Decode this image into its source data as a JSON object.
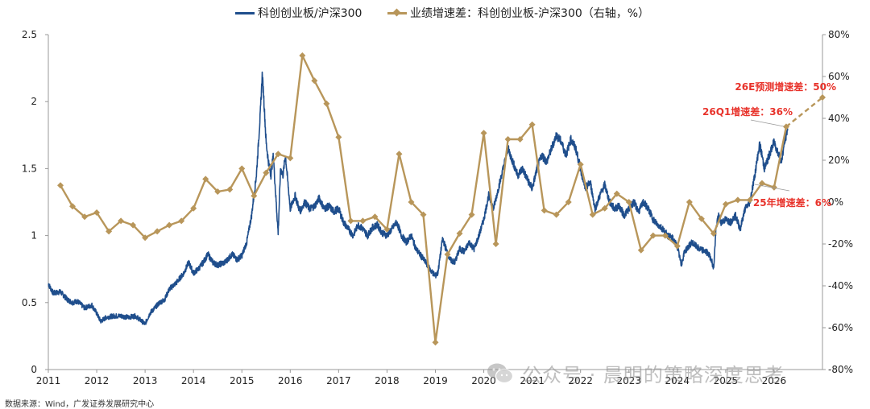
{
  "legend": {
    "series1_label": "科创创业板/沪深300",
    "series2_label": "业绩增速差：科创创业板-沪深300（右轴，%）"
  },
  "source": "数据来源：Wind，广发证券发展研究中心",
  "watermark": "公众号 · 晨明的策略深度思考",
  "colors": {
    "ratio_line": "#1f4e8c",
    "growth_line": "#b8965a",
    "annotation": "#e8332b",
    "axis": "#999999"
  },
  "chart_data": {
    "type": "line",
    "x_ticks": [
      "2011",
      "2012",
      "2013",
      "2014",
      "2015",
      "2016",
      "2017",
      "2018",
      "2019",
      "2020",
      "2021",
      "2022",
      "2023",
      "2024",
      "2025",
      "2026"
    ],
    "x_range": [
      2011.0,
      2027.0
    ],
    "y_left": {
      "ticks": [
        "0",
        "0.5",
        "1",
        "1.5",
        "2",
        "2.5"
      ],
      "range": [
        0,
        2.5
      ]
    },
    "y_right": {
      "ticks": [
        "-80%",
        "-60%",
        "-40%",
        "-20%",
        "0%",
        "20%",
        "40%",
        "60%",
        "80%"
      ],
      "range": [
        -80,
        80
      ]
    },
    "grid": false,
    "legend_position": "top",
    "series": [
      {
        "name": "科创创业板/沪深300",
        "axis": "left",
        "style": "line",
        "points": [
          [
            2011.0,
            0.64
          ],
          [
            2011.1,
            0.57
          ],
          [
            2011.25,
            0.58
          ],
          [
            2011.4,
            0.52
          ],
          [
            2011.5,
            0.5
          ],
          [
            2011.6,
            0.51
          ],
          [
            2011.75,
            0.46
          ],
          [
            2011.9,
            0.48
          ],
          [
            2012.0,
            0.42
          ],
          [
            2012.08,
            0.36
          ],
          [
            2012.2,
            0.39
          ],
          [
            2012.35,
            0.4
          ],
          [
            2012.5,
            0.4
          ],
          [
            2012.65,
            0.39
          ],
          [
            2012.8,
            0.4
          ],
          [
            2012.9,
            0.37
          ],
          [
            2013.0,
            0.34
          ],
          [
            2013.1,
            0.42
          ],
          [
            2013.2,
            0.46
          ],
          [
            2013.3,
            0.5
          ],
          [
            2013.4,
            0.52
          ],
          [
            2013.5,
            0.6
          ],
          [
            2013.65,
            0.65
          ],
          [
            2013.8,
            0.72
          ],
          [
            2013.9,
            0.8
          ],
          [
            2014.0,
            0.72
          ],
          [
            2014.1,
            0.75
          ],
          [
            2014.2,
            0.8
          ],
          [
            2014.3,
            0.86
          ],
          [
            2014.4,
            0.8
          ],
          [
            2014.5,
            0.78
          ],
          [
            2014.65,
            0.8
          ],
          [
            2014.8,
            0.86
          ],
          [
            2014.9,
            0.82
          ],
          [
            2015.0,
            0.85
          ],
          [
            2015.1,
            0.95
          ],
          [
            2015.2,
            1.15
          ],
          [
            2015.3,
            1.45
          ],
          [
            2015.38,
            1.9
          ],
          [
            2015.42,
            2.2
          ],
          [
            2015.45,
            2.05
          ],
          [
            2015.5,
            1.7
          ],
          [
            2015.55,
            1.55
          ],
          [
            2015.6,
            1.45
          ],
          [
            2015.65,
            1.6
          ],
          [
            2015.7,
            1.3
          ],
          [
            2015.75,
            1.02
          ],
          [
            2015.8,
            1.5
          ],
          [
            2015.85,
            1.45
          ],
          [
            2015.9,
            1.6
          ],
          [
            2015.95,
            1.4
          ],
          [
            2016.0,
            1.2
          ],
          [
            2016.1,
            1.3
          ],
          [
            2016.2,
            1.18
          ],
          [
            2016.3,
            1.25
          ],
          [
            2016.4,
            1.2
          ],
          [
            2016.5,
            1.22
          ],
          [
            2016.6,
            1.28
          ],
          [
            2016.7,
            1.2
          ],
          [
            2016.8,
            1.22
          ],
          [
            2016.9,
            1.18
          ],
          [
            2017.0,
            1.2
          ],
          [
            2017.1,
            1.1
          ],
          [
            2017.2,
            1.05
          ],
          [
            2017.3,
            1.0
          ],
          [
            2017.4,
            1.08
          ],
          [
            2017.5,
            1.05
          ],
          [
            2017.6,
            1.0
          ],
          [
            2017.7,
            1.06
          ],
          [
            2017.8,
            1.08
          ],
          [
            2017.9,
            1.02
          ],
          [
            2018.0,
            1.0
          ],
          [
            2018.1,
            1.05
          ],
          [
            2018.2,
            1.1
          ],
          [
            2018.3,
            1.0
          ],
          [
            2018.4,
            0.95
          ],
          [
            2018.5,
            1.0
          ],
          [
            2018.6,
            0.9
          ],
          [
            2018.7,
            0.85
          ],
          [
            2018.8,
            0.8
          ],
          [
            2018.9,
            0.74
          ],
          [
            2019.0,
            0.7
          ],
          [
            2019.05,
            0.72
          ],
          [
            2019.1,
            0.85
          ],
          [
            2019.15,
            0.98
          ],
          [
            2019.2,
            0.92
          ],
          [
            2019.3,
            0.82
          ],
          [
            2019.4,
            0.8
          ],
          [
            2019.5,
            0.9
          ],
          [
            2019.6,
            0.88
          ],
          [
            2019.7,
            0.95
          ],
          [
            2019.8,
            0.9
          ],
          [
            2019.9,
            1.0
          ],
          [
            2020.0,
            1.12
          ],
          [
            2020.1,
            1.3
          ],
          [
            2020.2,
            1.2
          ],
          [
            2020.3,
            1.35
          ],
          [
            2020.4,
            1.5
          ],
          [
            2020.5,
            1.65
          ],
          [
            2020.6,
            1.55
          ],
          [
            2020.7,
            1.45
          ],
          [
            2020.8,
            1.5
          ],
          [
            2020.9,
            1.42
          ],
          [
            2021.0,
            1.35
          ],
          [
            2021.1,
            1.5
          ],
          [
            2021.2,
            1.6
          ],
          [
            2021.3,
            1.55
          ],
          [
            2021.4,
            1.65
          ],
          [
            2021.5,
            1.75
          ],
          [
            2021.6,
            1.7
          ],
          [
            2021.7,
            1.6
          ],
          [
            2021.8,
            1.72
          ],
          [
            2021.9,
            1.65
          ],
          [
            2022.0,
            1.5
          ],
          [
            2022.1,
            1.35
          ],
          [
            2022.2,
            1.4
          ],
          [
            2022.3,
            1.2
          ],
          [
            2022.4,
            1.3
          ],
          [
            2022.5,
            1.38
          ],
          [
            2022.6,
            1.25
          ],
          [
            2022.7,
            1.2
          ],
          [
            2022.8,
            1.22
          ],
          [
            2022.9,
            1.15
          ],
          [
            2023.0,
            1.2
          ],
          [
            2023.1,
            1.25
          ],
          [
            2023.2,
            1.18
          ],
          [
            2023.3,
            1.25
          ],
          [
            2023.4,
            1.2
          ],
          [
            2023.5,
            1.12
          ],
          [
            2023.6,
            1.08
          ],
          [
            2023.7,
            1.05
          ],
          [
            2023.8,
            1.0
          ],
          [
            2023.9,
            0.98
          ],
          [
            2024.0,
            0.92
          ],
          [
            2024.08,
            0.78
          ],
          [
            2024.15,
            0.88
          ],
          [
            2024.3,
            0.95
          ],
          [
            2024.45,
            0.9
          ],
          [
            2024.6,
            0.88
          ],
          [
            2024.7,
            0.83
          ],
          [
            2024.75,
            0.75
          ],
          [
            2024.8,
            1.05
          ],
          [
            2024.85,
            1.15
          ],
          [
            2024.9,
            1.1
          ],
          [
            2025.0,
            1.12
          ],
          [
            2025.1,
            1.1
          ],
          [
            2025.2,
            1.15
          ],
          [
            2025.3,
            1.05
          ],
          [
            2025.4,
            1.2
          ],
          [
            2025.5,
            1.25
          ],
          [
            2025.6,
            1.45
          ],
          [
            2025.7,
            1.68
          ],
          [
            2025.75,
            1.6
          ],
          [
            2025.8,
            1.5
          ],
          [
            2025.9,
            1.6
          ],
          [
            2026.0,
            1.7
          ],
          [
            2026.08,
            1.62
          ],
          [
            2026.15,
            1.55
          ],
          [
            2026.22,
            1.7
          ],
          [
            2026.28,
            1.8
          ]
        ]
      },
      {
        "name": "业绩增速差：科创创业板-沪深300（右轴，%）",
        "axis": "right",
        "style": "line-diamond",
        "points": [
          [
            2011.25,
            8
          ],
          [
            2011.5,
            -2
          ],
          [
            2011.75,
            -7
          ],
          [
            2012.0,
            -5
          ],
          [
            2012.25,
            -14
          ],
          [
            2012.5,
            -9
          ],
          [
            2012.75,
            -11
          ],
          [
            2013.0,
            -17
          ],
          [
            2013.25,
            -14
          ],
          [
            2013.5,
            -11
          ],
          [
            2013.75,
            -9
          ],
          [
            2014.0,
            -3
          ],
          [
            2014.25,
            11
          ],
          [
            2014.5,
            5
          ],
          [
            2014.75,
            6
          ],
          [
            2015.0,
            16
          ],
          [
            2015.25,
            3
          ],
          [
            2015.5,
            14
          ],
          [
            2015.75,
            23
          ],
          [
            2016.0,
            21
          ],
          [
            2016.25,
            70
          ],
          [
            2016.5,
            58
          ],
          [
            2016.75,
            47
          ],
          [
            2017.0,
            31
          ],
          [
            2017.25,
            -9
          ],
          [
            2017.5,
            -9
          ],
          [
            2017.75,
            -7
          ],
          [
            2018.0,
            -13
          ],
          [
            2018.25,
            23
          ],
          [
            2018.5,
            0
          ],
          [
            2018.75,
            -6
          ],
          [
            2019.0,
            -67
          ],
          [
            2019.25,
            -25
          ],
          [
            2019.5,
            -15
          ],
          [
            2019.75,
            -6
          ],
          [
            2020.0,
            33
          ],
          [
            2020.25,
            -20
          ],
          [
            2020.5,
            30
          ],
          [
            2020.75,
            30
          ],
          [
            2021.0,
            37
          ],
          [
            2021.25,
            -4
          ],
          [
            2021.5,
            -6
          ],
          [
            2021.75,
            0
          ],
          [
            2022.0,
            18
          ],
          [
            2022.25,
            -6
          ],
          [
            2022.5,
            -3
          ],
          [
            2022.75,
            4
          ],
          [
            2023.0,
            0
          ],
          [
            2023.25,
            -23
          ],
          [
            2023.5,
            -16
          ],
          [
            2023.75,
            -16
          ],
          [
            2024.0,
            -21
          ],
          [
            2024.25,
            0
          ],
          [
            2024.5,
            -8
          ],
          [
            2024.75,
            -15
          ],
          [
            2025.0,
            -1
          ],
          [
            2025.25,
            1
          ],
          [
            2025.5,
            1
          ],
          [
            2025.75,
            9
          ],
          [
            2026.0,
            7
          ],
          [
            2026.25,
            36
          ]
        ],
        "forecast_points": [
          [
            2026.25,
            36
          ],
          [
            2027.0,
            50
          ]
        ]
      }
    ],
    "annotations": [
      {
        "text": "26E预测增速差：50%"
      },
      {
        "text": "26Q1增速差：36%"
      },
      {
        "text": "25年增速差：6%"
      }
    ]
  }
}
